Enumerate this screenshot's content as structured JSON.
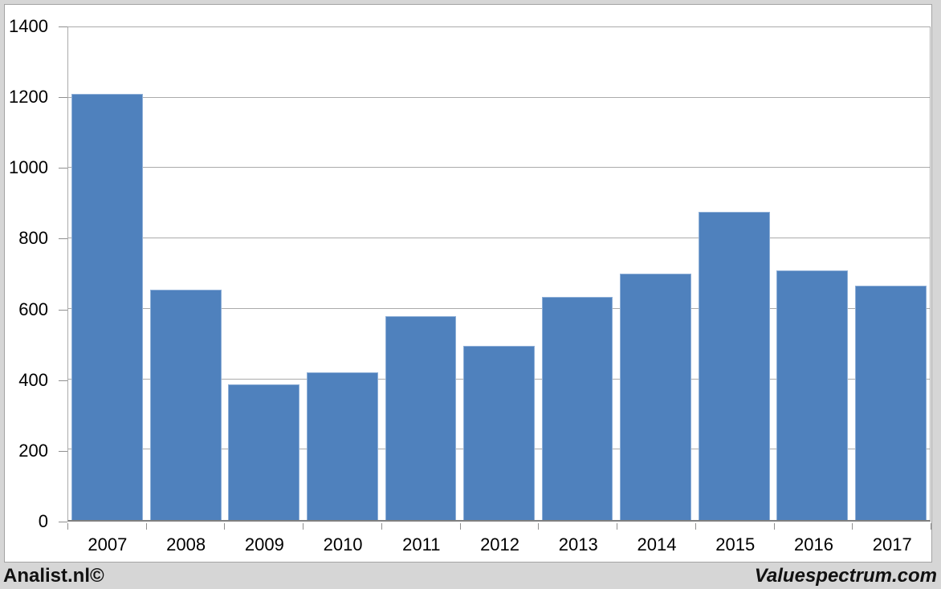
{
  "chart_data": {
    "type": "bar",
    "title": "",
    "xlabel": "",
    "ylabel": "",
    "categories": [
      "2007",
      "2008",
      "2009",
      "2010",
      "2011",
      "2012",
      "2013",
      "2014",
      "2015",
      "2016",
      "2017"
    ],
    "values": [
      1210,
      655,
      385,
      420,
      580,
      495,
      635,
      700,
      875,
      710,
      665
    ],
    "ylim": [
      0,
      1400
    ],
    "ytick_step": 200,
    "ytick_labels": [
      "0",
      "200",
      "400",
      "600",
      "800",
      "1000",
      "1200",
      "1400"
    ],
    "grid": true,
    "legend": "none",
    "bar_color": "#4f81bd",
    "gridline_color": "#ababab",
    "background_color": "#d6d6d6",
    "plot_background_color": "#ffffff"
  },
  "footer": {
    "left": "Analist.nl©",
    "right": "Valuespectrum.com"
  }
}
